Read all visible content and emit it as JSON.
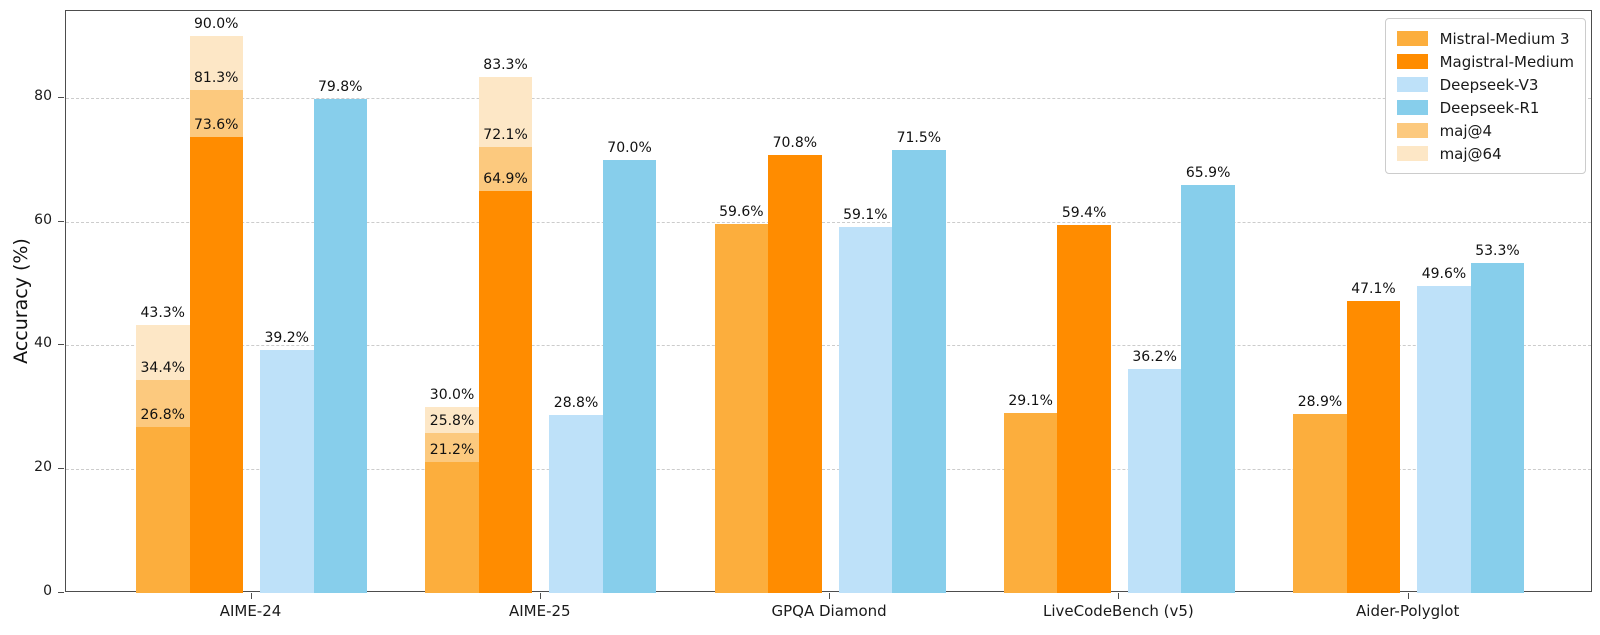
{
  "chart_data": {
    "type": "bar",
    "title": "",
    "xlabel": "",
    "ylabel": "Accuracy (%)",
    "ylim": [
      0,
      94
    ],
    "yticks": [
      0,
      20,
      40,
      60,
      80
    ],
    "grid": "horizontal-dashed",
    "legend_position": "upper-right",
    "value_label_suffix": "%",
    "categories": [
      "AIME-24",
      "AIME-25",
      "GPQA Diamond",
      "LiveCodeBench (v5)",
      "Aider-Polyglot"
    ],
    "series": [
      {
        "name": "Mistral-Medium 3",
        "color": "#FCAE3D",
        "values": [
          26.8,
          21.2,
          59.6,
          29.1,
          28.9
        ]
      },
      {
        "name": "Magistral-Medium",
        "color": "#FF8C00",
        "values": [
          73.6,
          64.9,
          70.8,
          59.4,
          47.1
        ]
      },
      {
        "name": "Deepseek-V3",
        "color": "#BEE1F9",
        "values": [
          39.2,
          28.8,
          59.1,
          36.2,
          49.6
        ]
      },
      {
        "name": "Deepseek-R1",
        "color": "#87CEEB",
        "values": [
          79.8,
          70.0,
          71.5,
          65.9,
          53.3
        ]
      }
    ],
    "overlays": [
      {
        "name": "maj@4",
        "color": "#FCC97E",
        "series_values": [
          [
            34.4,
            25.8,
            null,
            null,
            null
          ],
          [
            81.3,
            72.1,
            null,
            null,
            null
          ],
          [
            null,
            null,
            null,
            null,
            null
          ],
          [
            null,
            null,
            null,
            null,
            null
          ]
        ]
      },
      {
        "name": "maj@64",
        "color": "#FDE7C6",
        "series_values": [
          [
            43.3,
            30.0,
            null,
            null,
            null
          ],
          [
            90.0,
            83.3,
            null,
            null,
            null
          ],
          [
            null,
            null,
            null,
            null,
            null
          ],
          [
            null,
            null,
            null,
            null,
            null
          ]
        ]
      }
    ]
  },
  "colors": {
    "background": "#ffffff",
    "grid": "#cccccc",
    "spine": "#4d4d4d",
    "text": "#1a1a1a"
  }
}
